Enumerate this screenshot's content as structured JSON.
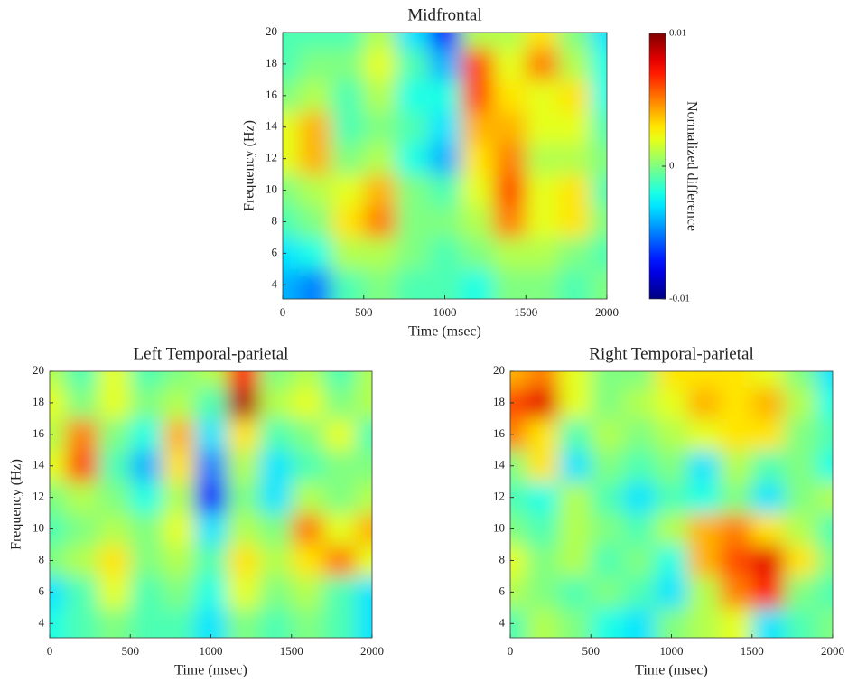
{
  "chart_data": [
    {
      "type": "heatmap",
      "title": "Midfrontal",
      "x_label": "Time (msec)",
      "y_label": "Frequency (Hz)",
      "x": [
        0,
        200,
        400,
        600,
        800,
        1000,
        1200,
        1400,
        1600,
        1800,
        2000
      ],
      "y": [
        4,
        6,
        8,
        10,
        12,
        14,
        16,
        18,
        20
      ],
      "z": [
        [
          -0.004,
          -0.005,
          -0.001,
          0,
          -0.001,
          -0.001,
          -0.002,
          0,
          0,
          -0.001,
          0
        ],
        [
          -0.003,
          -0.002,
          0.001,
          0.001,
          0,
          -0.001,
          0,
          0.001,
          0.001,
          0,
          -0.001
        ],
        [
          -0.001,
          0,
          0.003,
          0.005,
          0,
          0,
          0.001,
          0.005,
          0.002,
          0.003,
          0
        ],
        [
          0,
          0.001,
          0.002,
          0.004,
          0,
          -0.001,
          0.002,
          0.006,
          0.002,
          0.003,
          -0.001
        ],
        [
          0.002,
          0.004,
          0,
          0.001,
          -0.002,
          -0.004,
          0.003,
          0.005,
          0.001,
          0.001,
          0
        ],
        [
          0.002,
          0.004,
          -0.001,
          0,
          -0.001,
          -0.003,
          0.004,
          0.004,
          0.002,
          0.002,
          -0.001
        ],
        [
          0,
          0.001,
          -0.001,
          0.001,
          -0.002,
          -0.002,
          0.006,
          0.003,
          0.002,
          0.003,
          -0.002
        ],
        [
          -0.001,
          0,
          0,
          0.002,
          -0.001,
          -0.004,
          0.006,
          0.002,
          0.005,
          0.001,
          -0.002
        ],
        [
          -0.001,
          -0.001,
          -0.001,
          0.001,
          -0.003,
          -0.007,
          0.001,
          0.001,
          0.003,
          0,
          -0.003
        ]
      ],
      "xlim": [
        0,
        2000
      ],
      "ylim": [
        3.1,
        20
      ],
      "xticks": [
        0,
        500,
        1000,
        1500,
        2000
      ],
      "yticks": [
        4,
        6,
        8,
        10,
        12,
        14,
        16,
        18,
        20
      ],
      "zlim": [
        -0.01,
        0.01
      ],
      "colorbar": {
        "label": "Normalized difference",
        "ticks": [
          -0.01,
          0,
          0.01
        ]
      }
    },
    {
      "type": "heatmap",
      "title": "Left Temporal-parietal",
      "x_label": "Time (msec)",
      "y_label": "Frequency (Hz)",
      "x": [
        0,
        200,
        400,
        600,
        800,
        1000,
        1200,
        1400,
        1600,
        1800,
        2000
      ],
      "y": [
        4,
        6,
        8,
        10,
        12,
        14,
        16,
        18,
        20
      ],
      "z": [
        [
          -0.002,
          -0.001,
          0,
          -0.001,
          -0.001,
          -0.003,
          0,
          -0.001,
          0,
          -0.001,
          -0.003
        ],
        [
          -0.003,
          -0.001,
          0.002,
          -0.001,
          0,
          -0.002,
          0.002,
          0,
          0.001,
          -0.001,
          -0.003
        ],
        [
          0,
          0.001,
          0.003,
          0,
          0.001,
          -0.001,
          0.003,
          0.001,
          0.003,
          0.005,
          0.002
        ],
        [
          -0.001,
          0,
          0.001,
          0,
          0.002,
          -0.003,
          0.001,
          0,
          0.005,
          0.002,
          0.004
        ],
        [
          0,
          0.001,
          0,
          -0.002,
          0.001,
          -0.007,
          0,
          -0.003,
          0.001,
          0,
          0.001
        ],
        [
          0.002,
          0.006,
          -0.001,
          -0.004,
          0.003,
          -0.005,
          0.001,
          -0.003,
          -0.001,
          0,
          0
        ],
        [
          0.001,
          0.005,
          0,
          -0.002,
          0.004,
          -0.003,
          0.003,
          -0.001,
          0,
          0.002,
          -0.001
        ],
        [
          0.002,
          0,
          0.002,
          0,
          0.001,
          -0.001,
          0.009,
          0.001,
          0.002,
          0,
          0.001
        ],
        [
          0.001,
          -0.001,
          0.002,
          -0.001,
          0,
          0.001,
          0.007,
          0,
          0.001,
          -0.001,
          0.001
        ]
      ],
      "xlim": [
        0,
        2000
      ],
      "ylim": [
        3.1,
        20
      ],
      "xticks": [
        0,
        500,
        1000,
        1500,
        2000
      ],
      "yticks": [
        4,
        6,
        8,
        10,
        12,
        14,
        16,
        18,
        20
      ],
      "zlim": [
        -0.01,
        0.01
      ]
    },
    {
      "type": "heatmap",
      "title": "Right Temporal-parietal",
      "x_label": "Time (msec)",
      "x": [
        0,
        200,
        400,
        600,
        800,
        1000,
        1200,
        1400,
        1600,
        1800,
        2000
      ],
      "y": [
        4,
        6,
        8,
        10,
        12,
        14,
        16,
        18,
        20
      ],
      "z": [
        [
          -0.001,
          0.001,
          0,
          -0.002,
          -0.003,
          0,
          0.001,
          0.002,
          -0.003,
          -0.001,
          0
        ],
        [
          0.001,
          0,
          -0.001,
          0,
          -0.001,
          -0.003,
          0.001,
          0.005,
          0.007,
          0,
          -0.001
        ],
        [
          0.002,
          0,
          0.001,
          -0.001,
          0,
          -0.002,
          0.004,
          0.006,
          0.008,
          0.003,
          0
        ],
        [
          0,
          -0.001,
          0.001,
          0,
          -0.001,
          0.001,
          0.004,
          0.005,
          0.003,
          0.001,
          -0.001
        ],
        [
          -0.001,
          -0.002,
          0.001,
          -0.001,
          -0.003,
          -0.001,
          -0.002,
          0,
          -0.003,
          0,
          0.001
        ],
        [
          0,
          0.003,
          -0.003,
          0,
          -0.001,
          0,
          -0.003,
          0.001,
          -0.001,
          0,
          -0.002
        ],
        [
          0.005,
          0.003,
          -0.001,
          0.001,
          0,
          0.001,
          0.002,
          0.003,
          0.003,
          0,
          -0.001
        ],
        [
          0.006,
          0.008,
          0.002,
          0,
          0.001,
          0.002,
          0.004,
          0.003,
          0.004,
          0.001,
          -0.002
        ],
        [
          0.004,
          0.005,
          0.002,
          0,
          0,
          0.003,
          0.003,
          0.003,
          0.002,
          0,
          -0.003
        ]
      ],
      "xlim": [
        0,
        2000
      ],
      "ylim": [
        3.1,
        20
      ],
      "xticks": [
        0,
        500,
        1000,
        1500,
        2000
      ],
      "yticks": [
        4,
        6,
        8,
        10,
        12,
        14,
        16,
        18,
        20
      ],
      "zlim": [
        -0.01,
        0.01
      ]
    }
  ]
}
